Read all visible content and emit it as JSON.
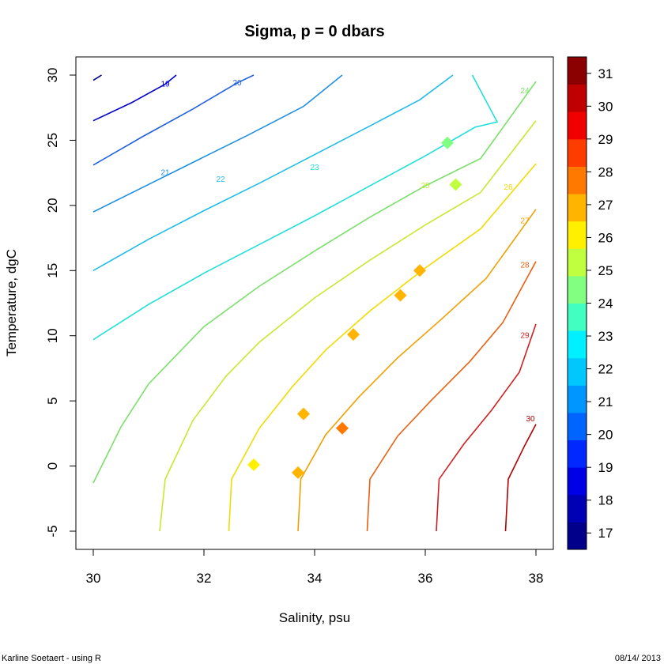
{
  "chart_data": {
    "type": "contour",
    "title": "Sigma, p = 0 dbars",
    "xlabel": "Salinity, psu",
    "ylabel": "Temperature, dgC",
    "xlim": [
      30,
      38
    ],
    "ylim": [
      -5,
      30
    ],
    "x_ticks": [
      "30",
      "32",
      "34",
      "36",
      "38"
    ],
    "y_ticks": [
      "-5",
      "0",
      "5",
      "10",
      "15",
      "20",
      "25",
      "30"
    ],
    "contour_levels": [
      {
        "label": "19",
        "color": "#0000C8"
      },
      {
        "label": "20",
        "color": "#2060E0"
      },
      {
        "label": "21",
        "color": "#1E90E0"
      },
      {
        "label": "22",
        "color": "#20BCE8"
      },
      {
        "label": "23",
        "color": "#20E0D8"
      },
      {
        "label": "24",
        "color": "#7AE06A"
      },
      {
        "label": "25",
        "color": "#C8E830"
      },
      {
        "label": "26",
        "color": "#F0DC00"
      },
      {
        "label": "27",
        "color": "#F0A000"
      },
      {
        "label": "28",
        "color": "#E86010"
      },
      {
        "label": "29",
        "color": "#D02020"
      },
      {
        "label": "30",
        "color": "#B00000"
      }
    ],
    "points": [
      {
        "x": 32.9,
        "y": 0.1,
        "sigma": 26.3
      },
      {
        "x": 33.7,
        "y": -0.5,
        "sigma": 27.0
      },
      {
        "x": 33.8,
        "y": 4.0,
        "sigma": 26.7
      },
      {
        "x": 34.5,
        "y": 2.9,
        "sigma": 27.6
      },
      {
        "x": 34.7,
        "y": 10.1,
        "sigma": 26.6
      },
      {
        "x": 35.55,
        "y": 13.1,
        "sigma": 26.6
      },
      {
        "x": 35.9,
        "y": 15.0,
        "sigma": 26.5
      },
      {
        "x": 36.4,
        "y": 24.8,
        "sigma": 24.3
      },
      {
        "x": 36.55,
        "y": 21.6,
        "sigma": 25.3
      }
    ],
    "colorbar": {
      "ticks": [
        "17",
        "18",
        "19",
        "20",
        "21",
        "22",
        "23",
        "24",
        "25",
        "26",
        "27",
        "28",
        "29",
        "30",
        "31"
      ],
      "min": 16.5,
      "max": 31.5,
      "colors": [
        "#00008B",
        "#0000B4",
        "#0000E6",
        "#0028FF",
        "#0064FF",
        "#0096FF",
        "#00C8FF",
        "#00F0FF",
        "#40FFC0",
        "#80FF80",
        "#C0FF40",
        "#FFF000",
        "#FFB400",
        "#FF7800",
        "#FF3C00",
        "#F00000",
        "#C00000",
        "#8B0000"
      ]
    },
    "grid": false,
    "legend": "right colorbar"
  },
  "footer": {
    "left": "Karline Soetaert - using R",
    "right": "08/14/ 2013"
  }
}
